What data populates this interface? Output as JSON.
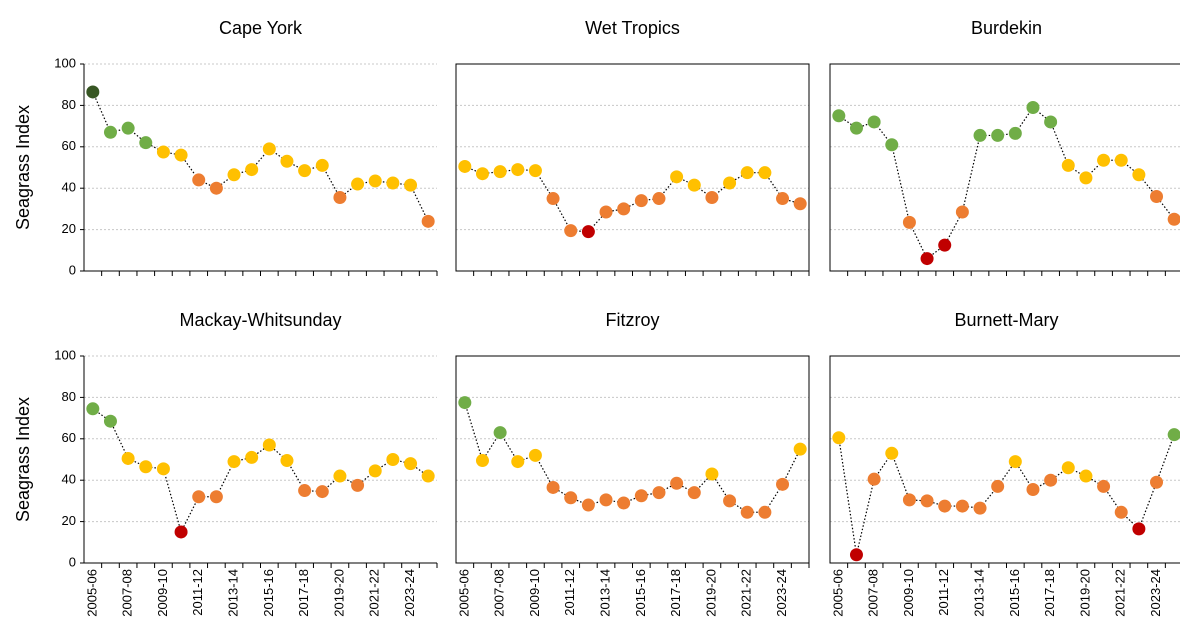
{
  "chart_data": [
    {
      "type": "line",
      "title": "Cape York",
      "y_label": "Seagrass Index",
      "show_ytick_labels": true,
      "show_xtick_labels": false,
      "categories": [
        "2005-06",
        null,
        "2007-08",
        null,
        "2009-10",
        null,
        "2011-12",
        null,
        "2013-14",
        null,
        "2015-16",
        null,
        "2017-18",
        null,
        "2019-20",
        null,
        "2021-22",
        null,
        "2023-24",
        null
      ],
      "series": [
        {
          "line_color": "#000000",
          "values": [
            86.5,
            67,
            69,
            62,
            57.5,
            56,
            44,
            40,
            46.5,
            49,
            59,
            53,
            48.5,
            51,
            35.5,
            42,
            43.5,
            42.5,
            41.5,
            24
          ],
          "colors": [
            "#375623",
            "#70ad47",
            "#70ad47",
            "#70ad47",
            "#ffc000",
            "#ffc000",
            "#ed7d31",
            "#ed7d31",
            "#ffc000",
            "#ffc000",
            "#ffc000",
            "#ffc000",
            "#ffc000",
            "#ffc000",
            "#ed7d31",
            "#ffc000",
            "#ffc000",
            "#ffc000",
            "#ffc000",
            "#ed7d31"
          ]
        }
      ],
      "ylim": [
        0,
        100
      ],
      "yticks": [
        0,
        20,
        40,
        60,
        80,
        100
      ],
      "grid": true,
      "frame": false
    },
    {
      "type": "line",
      "title": "Wet Tropics",
      "show_ytick_labels": false,
      "show_xtick_labels": false,
      "categories": [
        "2005-06",
        null,
        "2007-08",
        null,
        "2009-10",
        null,
        "2011-12",
        null,
        "2013-14",
        null,
        "2015-16",
        null,
        "2017-18",
        null,
        "2019-20",
        null,
        "2021-22",
        null,
        "2023-24",
        null
      ],
      "series": [
        {
          "line_color": "#000000",
          "values": [
            50.5,
            47,
            48,
            49,
            48.5,
            35,
            19.5,
            19,
            28.5,
            30,
            34,
            35,
            45.5,
            41.5,
            35.5,
            42.5,
            47.5,
            47.5,
            35,
            32.5
          ],
          "colors": [
            "#ffc000",
            "#ffc000",
            "#ffc000",
            "#ffc000",
            "#ffc000",
            "#ed7d31",
            "#ed7d31",
            "#c00000",
            "#ed7d31",
            "#ed7d31",
            "#ed7d31",
            "#ed7d31",
            "#ffc000",
            "#ffc000",
            "#ed7d31",
            "#ffc000",
            "#ffc000",
            "#ffc000",
            "#ed7d31",
            "#ed7d31"
          ]
        }
      ],
      "ylim": [
        0,
        100
      ],
      "yticks": [
        0,
        20,
        40,
        60,
        80,
        100
      ],
      "grid": true,
      "frame": true
    },
    {
      "type": "line",
      "title": "Burdekin",
      "show_ytick_labels": false,
      "show_xtick_labels": false,
      "categories": [
        "2005-06",
        null,
        "2007-08",
        null,
        "2009-10",
        null,
        "2011-12",
        null,
        "2013-14",
        null,
        "2015-16",
        null,
        "2017-18",
        null,
        "2019-20",
        null,
        "2021-22",
        null,
        "2023-24",
        null
      ],
      "series": [
        {
          "line_color": "#000000",
          "values": [
            75,
            69,
            72,
            61,
            23.5,
            6,
            12.5,
            28.5,
            65.5,
            65.5,
            66.5,
            79,
            72,
            51,
            45,
            53.5,
            53.5,
            46.5,
            36,
            25
          ],
          "colors": [
            "#70ad47",
            "#70ad47",
            "#70ad47",
            "#70ad47",
            "#ed7d31",
            "#c00000",
            "#c00000",
            "#ed7d31",
            "#70ad47",
            "#70ad47",
            "#70ad47",
            "#70ad47",
            "#70ad47",
            "#ffc000",
            "#ffc000",
            "#ffc000",
            "#ffc000",
            "#ffc000",
            "#ed7d31",
            "#ed7d31"
          ]
        }
      ],
      "ylim": [
        0,
        100
      ],
      "yticks": [
        0,
        20,
        40,
        60,
        80,
        100
      ],
      "grid": true,
      "frame": true
    },
    {
      "type": "line",
      "title": "Mackay-Whitsunday",
      "y_label": "Seagrass Index",
      "show_ytick_labels": true,
      "show_xtick_labels": true,
      "categories": [
        "2005-06",
        null,
        "2007-08",
        null,
        "2009-10",
        null,
        "2011-12",
        null,
        "2013-14",
        null,
        "2015-16",
        null,
        "2017-18",
        null,
        "2019-20",
        null,
        "2021-22",
        null,
        "2023-24",
        null
      ],
      "series": [
        {
          "line_color": "#000000",
          "values": [
            74.5,
            68.5,
            50.5,
            46.5,
            45.5,
            15,
            32,
            32,
            49,
            51,
            57,
            49.5,
            35,
            34.5,
            42,
            37.5,
            44.5,
            50,
            48,
            42
          ],
          "colors": [
            "#70ad47",
            "#70ad47",
            "#ffc000",
            "#ffc000",
            "#ffc000",
            "#c00000",
            "#ed7d31",
            "#ed7d31",
            "#ffc000",
            "#ffc000",
            "#ffc000",
            "#ffc000",
            "#ed7d31",
            "#ed7d31",
            "#ffc000",
            "#ed7d31",
            "#ffc000",
            "#ffc000",
            "#ffc000",
            "#ffc000"
          ]
        }
      ],
      "ylim": [
        0,
        100
      ],
      "yticks": [
        0,
        20,
        40,
        60,
        80,
        100
      ],
      "grid": true,
      "frame": false
    },
    {
      "type": "line",
      "title": "Fitzroy",
      "show_ytick_labels": false,
      "show_xtick_labels": true,
      "categories": [
        "2005-06",
        null,
        "2007-08",
        null,
        "2009-10",
        null,
        "2011-12",
        null,
        "2013-14",
        null,
        "2015-16",
        null,
        "2017-18",
        null,
        "2019-20",
        null,
        "2021-22",
        null,
        "2023-24",
        null
      ],
      "series": [
        {
          "line_color": "#000000",
          "values": [
            77.5,
            49.5,
            63,
            49,
            52,
            36.5,
            31.5,
            28,
            30.5,
            29,
            32.5,
            34,
            38.5,
            34,
            43,
            30,
            24.5,
            24.5,
            38,
            55
          ],
          "colors": [
            "#70ad47",
            "#ffc000",
            "#70ad47",
            "#ffc000",
            "#ffc000",
            "#ed7d31",
            "#ed7d31",
            "#ed7d31",
            "#ed7d31",
            "#ed7d31",
            "#ed7d31",
            "#ed7d31",
            "#ed7d31",
            "#ed7d31",
            "#ffc000",
            "#ed7d31",
            "#ed7d31",
            "#ed7d31",
            "#ed7d31",
            "#ffc000"
          ]
        }
      ],
      "ylim": [
        0,
        100
      ],
      "yticks": [
        0,
        20,
        40,
        60,
        80,
        100
      ],
      "grid": true,
      "frame": true
    },
    {
      "type": "line",
      "title": "Burnett-Mary",
      "show_ytick_labels": false,
      "show_xtick_labels": true,
      "categories": [
        "2005-06",
        null,
        "2007-08",
        null,
        "2009-10",
        null,
        "2011-12",
        null,
        "2013-14",
        null,
        "2015-16",
        null,
        "2017-18",
        null,
        "2019-20",
        null,
        "2021-22",
        null,
        "2023-24",
        null
      ],
      "series": [
        {
          "line_color": "#000000",
          "values": [
            60.5,
            4,
            40.5,
            53,
            30.5,
            30,
            27.5,
            27.5,
            26.5,
            37,
            49,
            35.5,
            40,
            46,
            42,
            37,
            24.5,
            16.5,
            39,
            62
          ],
          "colors": [
            "#ffc000",
            "#c00000",
            "#ed7d31",
            "#ffc000",
            "#ed7d31",
            "#ed7d31",
            "#ed7d31",
            "#ed7d31",
            "#ed7d31",
            "#ed7d31",
            "#ffc000",
            "#ed7d31",
            "#ed7d31",
            "#ffc000",
            "#ffc000",
            "#ed7d31",
            "#ed7d31",
            "#c00000",
            "#ed7d31",
            "#70ad47"
          ]
        }
      ],
      "ylim": [
        0,
        100
      ],
      "yticks": [
        0,
        20,
        40,
        60,
        80,
        100
      ],
      "grid": true,
      "frame": true
    }
  ]
}
